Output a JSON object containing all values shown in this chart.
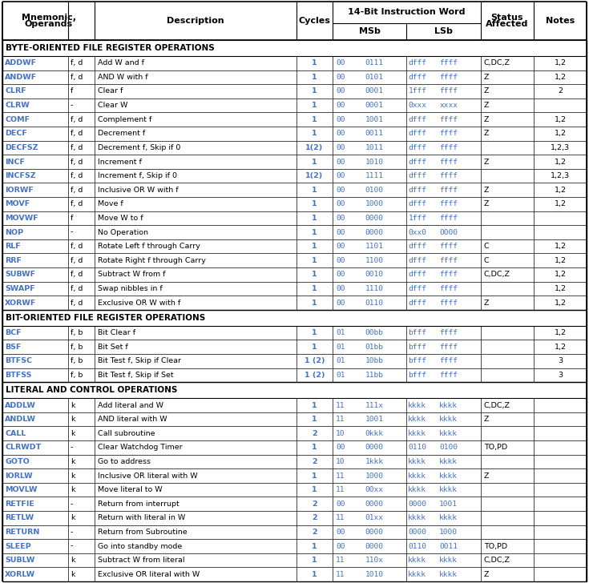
{
  "text_color": "#000000",
  "blue_color": "#4472C4",
  "sections": [
    {
      "name": "BYTE-ORIENTED FILE REGISTER OPERATIONS",
      "rows": [
        [
          "ADDWF",
          "f, d",
          "Add W and f",
          "1",
          "00",
          "0111",
          "dfff",
          "ffff",
          "C,DC,Z",
          "1,2"
        ],
        [
          "ANDWF",
          "f, d",
          "AND W with f",
          "1",
          "00",
          "0101",
          "dfff",
          "ffff",
          "Z",
          "1,2"
        ],
        [
          "CLRF",
          "f",
          "Clear f",
          "1",
          "00",
          "0001",
          "1fff",
          "ffff",
          "Z",
          "2"
        ],
        [
          "CLRW",
          "-",
          "Clear W",
          "1",
          "00",
          "0001",
          "0xxx",
          "xxxx",
          "Z",
          ""
        ],
        [
          "COMF",
          "f, d",
          "Complement f",
          "1",
          "00",
          "1001",
          "dfff",
          "ffff",
          "Z",
          "1,2"
        ],
        [
          "DECF",
          "f, d",
          "Decrement f",
          "1",
          "00",
          "0011",
          "dfff",
          "ffff",
          "Z",
          "1,2"
        ],
        [
          "DECFSZ",
          "f, d",
          "Decrement f, Skip if 0",
          "1(2)",
          "00",
          "1011",
          "dfff",
          "ffff",
          "",
          "1,2,3"
        ],
        [
          "INCF",
          "f, d",
          "Increment f",
          "1",
          "00",
          "1010",
          "dfff",
          "ffff",
          "Z",
          "1,2"
        ],
        [
          "INCFSZ",
          "f, d",
          "Increment f, Skip if 0",
          "1(2)",
          "00",
          "1111",
          "dfff",
          "ffff",
          "",
          "1,2,3"
        ],
        [
          "IORWF",
          "f, d",
          "Inclusive OR W with f",
          "1",
          "00",
          "0100",
          "dfff",
          "ffff",
          "Z",
          "1,2"
        ],
        [
          "MOVF",
          "f, d",
          "Move f",
          "1",
          "00",
          "1000",
          "dfff",
          "ffff",
          "Z",
          "1,2"
        ],
        [
          "MOVWF",
          "f",
          "Move W to f",
          "1",
          "00",
          "0000",
          "1fff",
          "ffff",
          "",
          ""
        ],
        [
          "NOP",
          "-",
          "No Operation",
          "1",
          "00",
          "0000",
          "0xx0",
          "0000",
          "",
          ""
        ],
        [
          "RLF",
          "f, d",
          "Rotate Left f through Carry",
          "1",
          "00",
          "1101",
          "dfff",
          "ffff",
          "C",
          "1,2"
        ],
        [
          "RRF",
          "f, d",
          "Rotate Right f through Carry",
          "1",
          "00",
          "1100",
          "dfff",
          "ffff",
          "C",
          "1,2"
        ],
        [
          "SUBWF",
          "f, d",
          "Subtract W from f",
          "1",
          "00",
          "0010",
          "dfff",
          "ffff",
          "C,DC,Z",
          "1,2"
        ],
        [
          "SWAPF",
          "f, d",
          "Swap nibbles in f",
          "1",
          "00",
          "1110",
          "dfff",
          "ffff",
          "",
          "1,2"
        ],
        [
          "XORWF",
          "f, d",
          "Exclusive OR W with f",
          "1",
          "00",
          "0110",
          "dfff",
          "ffff",
          "Z",
          "1,2"
        ]
      ]
    },
    {
      "name": "BIT-ORIENTED FILE REGISTER OPERATIONS",
      "rows": [
        [
          "BCF",
          "f, b",
          "Bit Clear f",
          "1",
          "01",
          "00bb",
          "bfff",
          "ffff",
          "",
          "1,2"
        ],
        [
          "BSF",
          "f, b",
          "Bit Set f",
          "1",
          "01",
          "01bb",
          "bfff",
          "ffff",
          "",
          "1,2"
        ],
        [
          "BTFSC",
          "f, b",
          "Bit Test f, Skip if Clear",
          "1 (2)",
          "01",
          "10bb",
          "bfff",
          "ffff",
          "",
          "3"
        ],
        [
          "BTFSS",
          "f, b",
          "Bit Test f, Skip if Set",
          "1 (2)",
          "01",
          "11bb",
          "bfff",
          "ffff",
          "",
          "3"
        ]
      ]
    },
    {
      "name": "LITERAL AND CONTROL OPERATIONS",
      "rows": [
        [
          "ADDLW",
          "k",
          "Add literal and W",
          "1",
          "11",
          "111x",
          "kkkk",
          "kkkk",
          "C,DC,Z",
          ""
        ],
        [
          "ANDLW",
          "k",
          "AND literal with W",
          "1",
          "11",
          "1001",
          "kkkk",
          "kkkk",
          "Z",
          ""
        ],
        [
          "CALL",
          "k",
          "Call subroutine",
          "2",
          "10",
          "0kkk",
          "kkkk",
          "kkkk",
          "",
          ""
        ],
        [
          "CLRWDT",
          "-",
          "Clear Watchdog Timer",
          "1",
          "00",
          "0000",
          "0110",
          "0100",
          "TO,PD",
          ""
        ],
        [
          "GOTO",
          "k",
          "Go to address",
          "2",
          "10",
          "1kkk",
          "kkkk",
          "kkkk",
          "",
          ""
        ],
        [
          "IORLW",
          "k",
          "Inclusive OR literal with W",
          "1",
          "11",
          "1000",
          "kkkk",
          "kkkk",
          "Z",
          ""
        ],
        [
          "MOVLW",
          "k",
          "Move literal to W",
          "1",
          "11",
          "00xx",
          "kkkk",
          "kkkk",
          "",
          ""
        ],
        [
          "RETFIE",
          "-",
          "Return from interrupt",
          "2",
          "00",
          "0000",
          "0000",
          "1001",
          "",
          ""
        ],
        [
          "RETLW",
          "k",
          "Return with literal in W",
          "2",
          "11",
          "01xx",
          "kkkk",
          "kkkk",
          "",
          ""
        ],
        [
          "RETURN",
          "-",
          "Return from Subroutine",
          "2",
          "00",
          "0000",
          "0000",
          "1000",
          "",
          ""
        ],
        [
          "SLEEP",
          "-",
          "Go into standby mode",
          "1",
          "00",
          "0000",
          "0110",
          "0011",
          "TO,PD",
          ""
        ],
        [
          "SUBLW",
          "k",
          "Subtract W from literal",
          "1",
          "11",
          "110x",
          "kkkk",
          "kkkk",
          "C,DC,Z",
          ""
        ],
        [
          "XORLW",
          "k",
          "Exclusive OR literal with W",
          "1",
          "11",
          "1010",
          "kkkk",
          "kkkk",
          "Z",
          ""
        ]
      ]
    }
  ]
}
